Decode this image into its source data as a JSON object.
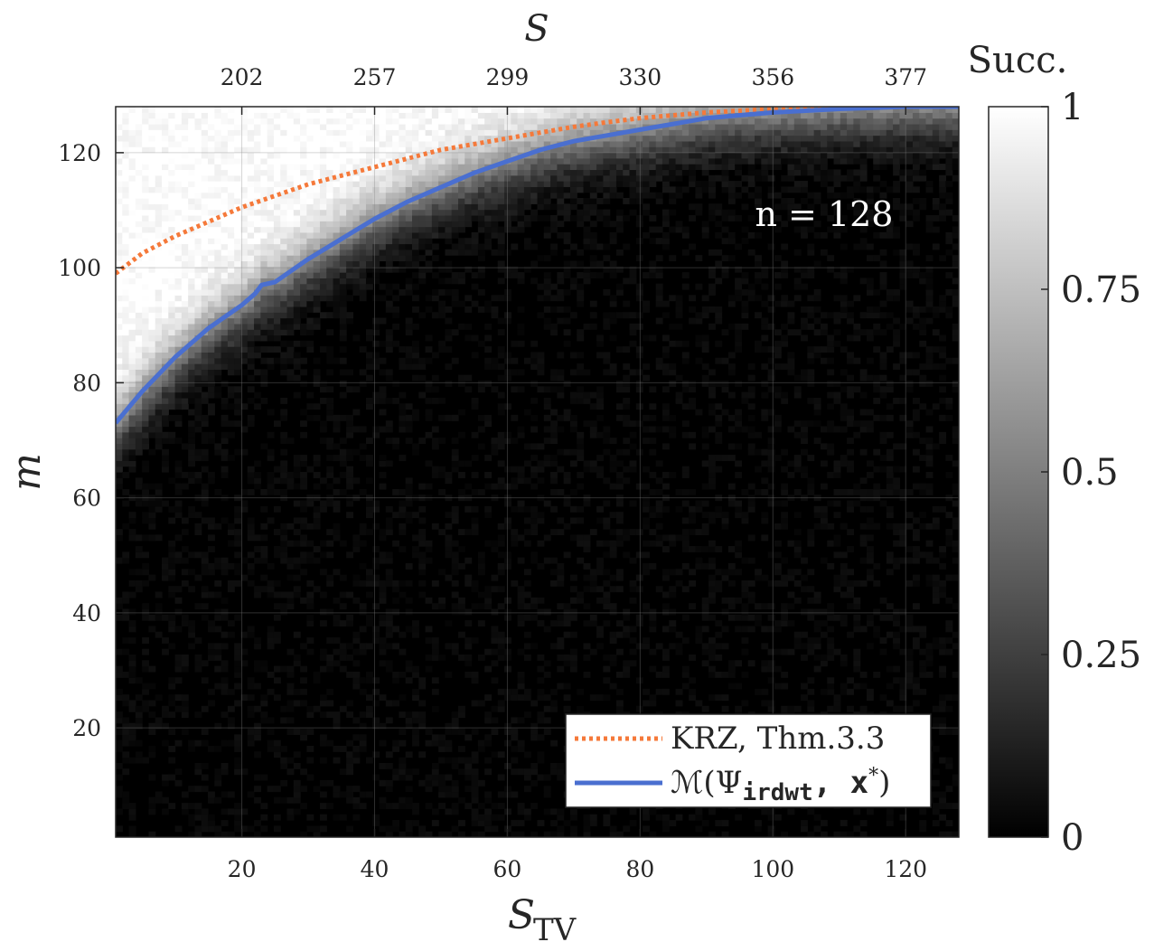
{
  "chart_data": {
    "type": "heatmap",
    "xlabel": "S",
    "xlabel_sub": "TV",
    "top_xlabel": "S",
    "ylabel": "m",
    "xlim": [
      1,
      128
    ],
    "ylim": [
      1,
      128
    ],
    "x_ticks": [
      "20",
      "40",
      "60",
      "80",
      "100",
      "120"
    ],
    "x_tick_values": [
      20,
      40,
      60,
      80,
      100,
      120
    ],
    "top_x_ticks": [
      "202",
      "257",
      "299",
      "330",
      "356",
      "377"
    ],
    "y_ticks": [
      "20",
      "40",
      "60",
      "80",
      "100",
      "120"
    ],
    "y_tick_values": [
      20,
      40,
      60,
      80,
      100,
      120
    ],
    "grid": true,
    "colorbar": {
      "title": "Succ.",
      "ticks": [
        "0",
        "0.25",
        "0.5",
        "0.75",
        "1"
      ],
      "tick_values": [
        0,
        0.25,
        0.5,
        0.75,
        1
      ],
      "colormap": "gray"
    },
    "annotation": "n = 128",
    "legend_position": "bottom-right",
    "series": [
      {
        "name": "KRZ, Thm.3.3",
        "color": "#f5793a",
        "style": "dotted",
        "x": [
          1,
          5,
          10,
          15,
          20,
          25,
          30,
          35,
          40,
          45,
          50,
          55,
          60,
          65,
          70,
          75,
          80,
          85,
          90,
          95,
          100,
          105,
          110,
          115,
          120,
          128
        ],
        "y": [
          99,
          102.5,
          105.5,
          108,
          110.5,
          112.5,
          114.5,
          116,
          117.5,
          119,
          120.5,
          121.5,
          122.5,
          123.5,
          124.5,
          125.3,
          126,
          126.5,
          127,
          127.3,
          127.6,
          127.8,
          128,
          128,
          128,
          128
        ]
      },
      {
        "name": "M(Ψirdwt, x*)",
        "name_parts": [
          "ℳ(Ψ",
          "irdwt",
          ", x",
          "*",
          ")"
        ],
        "color": "#4a6fd0",
        "style": "solid",
        "x": [
          1,
          5,
          10,
          15,
          20,
          22,
          23,
          25,
          30,
          35,
          40,
          45,
          50,
          55,
          60,
          65,
          70,
          75,
          80,
          85,
          90,
          95,
          100,
          105,
          110,
          115,
          120,
          128
        ],
        "y": [
          73,
          78.5,
          84.5,
          89.5,
          93.5,
          95.5,
          97,
          97.5,
          101.5,
          105,
          108.5,
          111.5,
          114,
          116.5,
          118.5,
          120.5,
          122,
          123,
          124,
          125,
          126,
          126.5,
          127,
          127.3,
          127.6,
          127.8,
          128,
          128
        ]
      }
    ],
    "heatmap_description_values": {
      "upper_left_value": 1,
      "lower_right_value": 0
    }
  }
}
